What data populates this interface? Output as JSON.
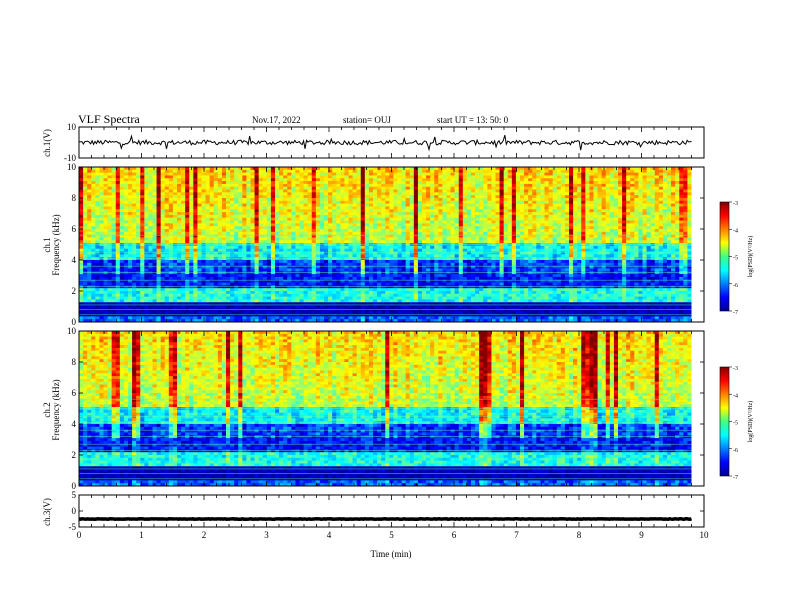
{
  "header": {
    "title": "VLF Spectra",
    "date": "Nov.17, 2022",
    "station": "station= OUJ",
    "start": "start  UT  =   13: 50: 0"
  },
  "chart_data": [
    {
      "type": "line",
      "panel": "ch1-waveform",
      "ylabel": "ch.1(V)",
      "ylim": [
        -10,
        10
      ],
      "y_ticks": [
        "10",
        "-10"
      ],
      "x_range": [
        0,
        10
      ],
      "x_end": 9.8,
      "approx_baseline": 0,
      "approx_amplitude": 1.5
    },
    {
      "type": "heatmap",
      "panel": "ch1-spectrogram",
      "ylabel": "ch.1",
      "ylabel2": "Frequency (kHz)",
      "ylim": [
        0,
        10
      ],
      "y_ticks": [
        "0",
        "2",
        "4",
        "6",
        "8",
        "10"
      ],
      "x_range": [
        0,
        10
      ],
      "x_end": 9.8,
      "colorbar": {
        "label": "log(PSD)(V²/Hz)",
        "range": [
          -7,
          -3
        ],
        "ticks": [
          "-3",
          "-4",
          "-5",
          "-6",
          "-7"
        ]
      }
    },
    {
      "type": "heatmap",
      "panel": "ch2-spectrogram",
      "ylabel": "ch.2",
      "ylabel2": "Frequency (kHz)",
      "ylim": [
        0,
        10
      ],
      "y_ticks": [
        "0",
        "2",
        "4",
        "6",
        "8",
        "10"
      ],
      "x_range": [
        0,
        10
      ],
      "x_end": 9.8,
      "colorbar": {
        "label": "log(PSD)(V²/Hz)",
        "range": [
          -7,
          -3
        ],
        "ticks": [
          "-3",
          "-4",
          "-5",
          "-6",
          "-7"
        ]
      }
    },
    {
      "type": "line",
      "panel": "ch3-waveform",
      "ylabel": "ch.3(V)",
      "ylim": [
        -5,
        5
      ],
      "y_ticks": [
        "5",
        "0",
        "-5"
      ],
      "x_range": [
        0,
        10
      ],
      "x_end": 9.8,
      "approx_value": -2.5
    }
  ],
  "xaxis": {
    "label": "Time  (min)",
    "range": [
      0,
      10
    ],
    "ticks": [
      "0",
      "1",
      "2",
      "3",
      "4",
      "5",
      "6",
      "7",
      "8",
      "9",
      "10"
    ]
  },
  "colors": {
    "background_dark": "#0a0a80",
    "trace": "#000000"
  }
}
